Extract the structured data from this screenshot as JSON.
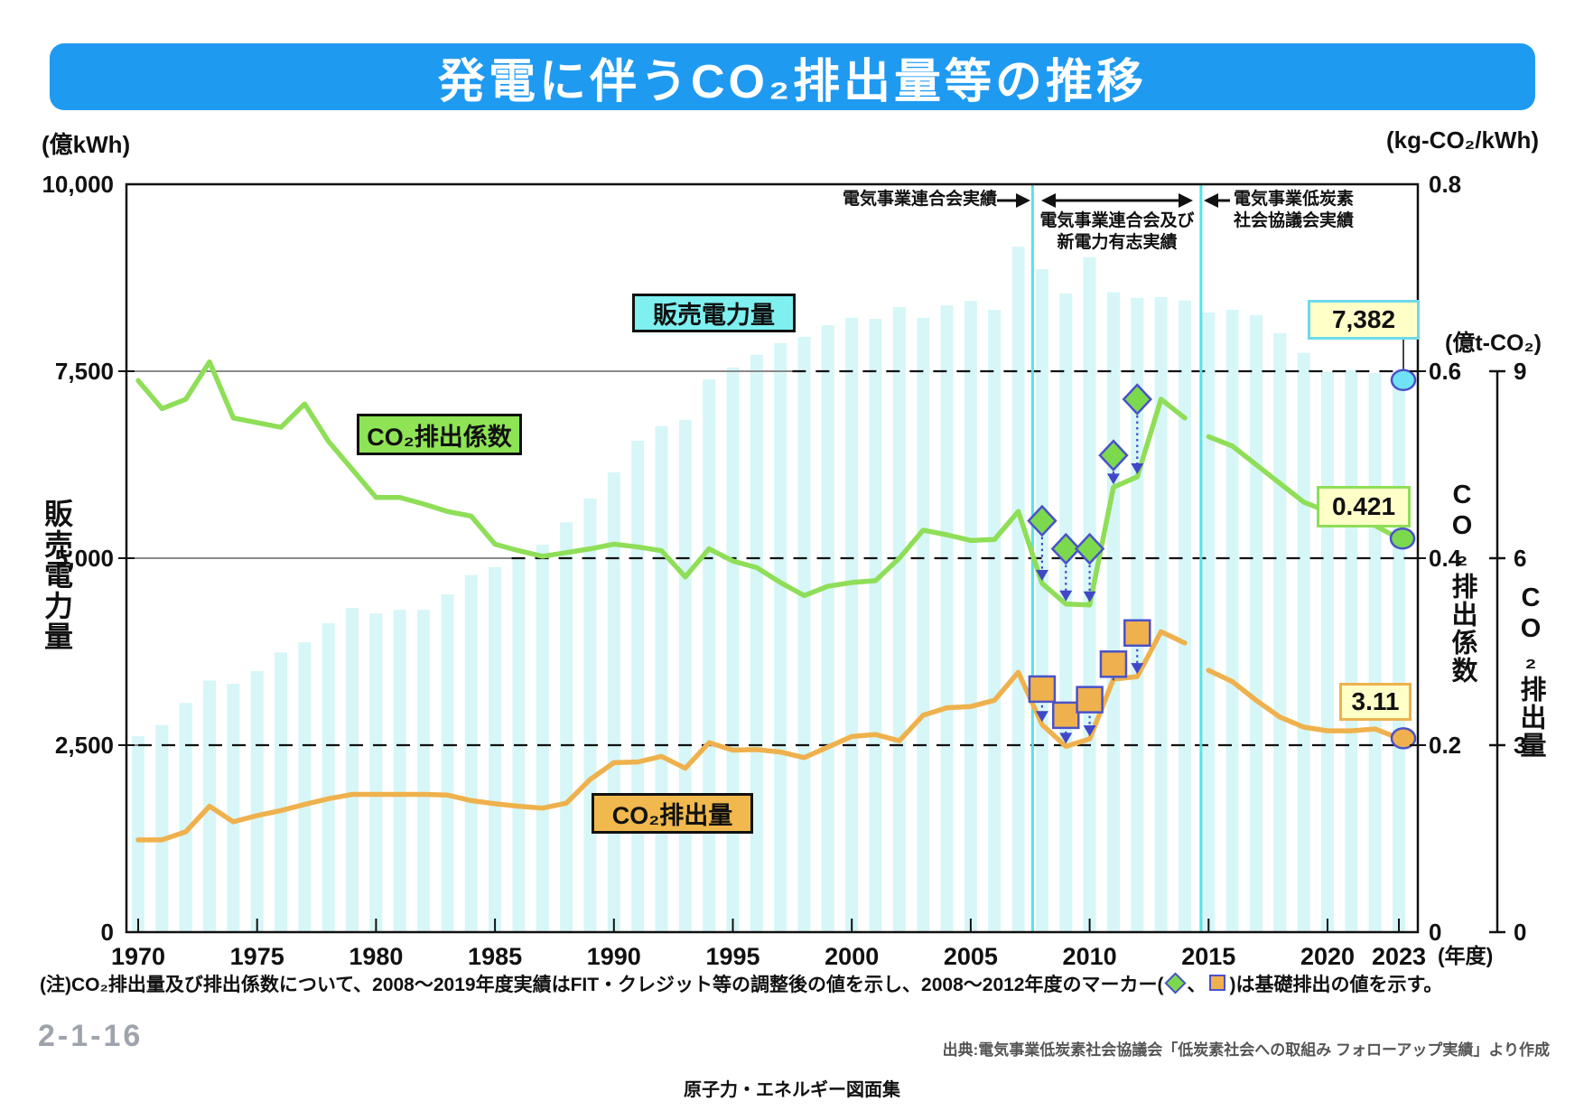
{
  "title": "発電に伴うCO₂排出量等の推移",
  "axes": {
    "left_unit": "(億kWh)",
    "left_title": "販売電力量",
    "left_ticks": [
      [
        10000,
        "10,000"
      ],
      [
        7500,
        "7,500"
      ],
      [
        5000,
        "5,000"
      ],
      [
        2500,
        "2,500"
      ],
      [
        0,
        "0"
      ]
    ],
    "right_unit": "(kg-CO₂/kWh)",
    "right_ticks": [
      [
        0.8,
        "0.8"
      ],
      [
        0.6,
        "0.6"
      ],
      [
        0.4,
        "0.4"
      ],
      [
        0.2,
        "0.2"
      ],
      [
        0,
        "0"
      ]
    ],
    "right2_unit": "(億t-CO₂)",
    "right2_title": "CO₂排出係数",
    "right3_title": "CO₂排出量",
    "right2_ticks": [
      [
        9,
        "9"
      ],
      [
        6,
        "6"
      ],
      [
        3,
        "3"
      ],
      [
        0,
        "0"
      ]
    ],
    "x_ticks": [
      [
        1970,
        "1970"
      ],
      [
        1975,
        "1975"
      ],
      [
        1980,
        "1980"
      ],
      [
        1985,
        "1985"
      ],
      [
        1990,
        "1990"
      ],
      [
        1995,
        "1995"
      ],
      [
        2000,
        "2000"
      ],
      [
        2005,
        "2005"
      ],
      [
        2010,
        "2010"
      ],
      [
        2015,
        "2015"
      ],
      [
        2020,
        "2020"
      ],
      [
        2023,
        "2023"
      ]
    ],
    "x_unit": "(年度)"
  },
  "legends": {
    "sales": "販売電力量",
    "factor": "CO₂排出係数",
    "amount": "CO₂排出量"
  },
  "callouts": {
    "sales": "7,382",
    "factor": "0.421",
    "amount": "3.11"
  },
  "annotations": {
    "fepc": "電気事業連合会実績",
    "fepc_new_1": "電気事業連合会及び",
    "fepc_new_2": "新電力有志実績",
    "elcs_1": "電気事業低炭素",
    "elcs_2": "社会協議会実績"
  },
  "note": {
    "pre": "(注)CO₂排出量及び排出係数について、2008〜2019年度実績はFIT・クレジット等の調整後の値を示し、2008〜2012年度のマーカー(",
    "mid": "、",
    "post": ")は基礎排出の値を示す。"
  },
  "footer": {
    "page_number": "2-1-16",
    "source": "出典:電気事業低炭素社会協議会「低炭素社会への取組み フォローアップ実績」より作成",
    "booklet": "原子力・エネルギー図面集"
  },
  "colors": {
    "banner": "#1f9af1",
    "bar": "#d7f6f7",
    "factor_line": "#8fde58",
    "amount_line": "#efb14d",
    "diamond_fill": "#7cd94e",
    "square_fill": "#efb14d",
    "marker_stroke": "#4a52c8",
    "arrow": "#4048c8",
    "divider": "#54e4e6",
    "sales_dot": "#70e2f5",
    "grid_solid": "#8a8a8a",
    "grid_dash": "#111111",
    "axis": "#111111"
  },
  "chart_data": {
    "type": "bar+line composite",
    "x_years": [
      1970,
      1971,
      1972,
      1973,
      1974,
      1975,
      1976,
      1977,
      1978,
      1979,
      1980,
      1981,
      1982,
      1983,
      1984,
      1985,
      1986,
      1987,
      1988,
      1989,
      1990,
      1991,
      1992,
      1993,
      1994,
      1995,
      1996,
      1997,
      1998,
      1999,
      2000,
      2001,
      2002,
      2003,
      2004,
      2005,
      2006,
      2007,
      2008,
      2009,
      2010,
      2011,
      2012,
      2013,
      2014,
      2015,
      2016,
      2017,
      2018,
      2019,
      2020,
      2021,
      2022,
      2023
    ],
    "series": [
      {
        "name": "販売電力量",
        "type": "bar",
        "unit": "億kWh",
        "axis_range": [
          0,
          10000
        ],
        "values": [
          2620,
          2770,
          3065,
          3365,
          3320,
          3490,
          3740,
          3875,
          4130,
          4335,
          4260,
          4310,
          4310,
          4515,
          4775,
          4880,
          5000,
          5180,
          5480,
          5800,
          6150,
          6570,
          6765,
          6850,
          7390,
          7550,
          7720,
          7875,
          7960,
          8115,
          8215,
          8200,
          8360,
          8215,
          8380,
          8440,
          8320,
          9165,
          8865,
          8540,
          9025,
          8555,
          8480,
          8490,
          8445,
          8285,
          8320,
          8250,
          8010,
          7745,
          7490,
          7515,
          7475,
          7382
        ]
      },
      {
        "name": "CO₂排出係数",
        "type": "line",
        "unit": "kg-CO₂/kWh",
        "axis_range": [
          0,
          0.8
        ],
        "gap_after": 2014,
        "values": [
          0.59,
          0.56,
          0.57,
          0.61,
          0.55,
          0.545,
          0.54,
          0.565,
          0.525,
          0.495,
          0.465,
          0.465,
          0.458,
          0.45,
          0.445,
          0.415,
          0.408,
          0.402,
          0.406,
          0.41,
          0.415,
          0.412,
          0.408,
          0.38,
          0.41,
          0.397,
          0.39,
          0.374,
          0.36,
          0.37,
          0.374,
          0.376,
          0.4,
          0.43,
          0.425,
          0.419,
          0.42,
          0.45,
          0.373,
          0.351,
          0.35,
          0.476,
          0.487,
          0.57,
          0.55,
          0.53,
          0.52,
          0.5,
          0.48,
          0.46,
          0.45,
          0.44,
          0.435,
          0.421
        ]
      },
      {
        "name": "CO₂排出量",
        "type": "line",
        "unit": "億t-CO₂",
        "axis_range": [
          0,
          12
        ],
        "gap_after": 2014,
        "values": [
          1.48,
          1.48,
          1.61,
          2.02,
          1.77,
          1.87,
          1.95,
          2.05,
          2.14,
          2.21,
          2.21,
          2.21,
          2.21,
          2.2,
          2.11,
          2.06,
          2.02,
          1.99,
          2.07,
          2.45,
          2.72,
          2.73,
          2.82,
          2.63,
          3.04,
          2.92,
          2.93,
          2.89,
          2.8,
          2.97,
          3.14,
          3.17,
          3.07,
          3.48,
          3.6,
          3.62,
          3.72,
          4.17,
          3.33,
          2.98,
          3.1,
          4.06,
          4.1,
          4.82,
          4.64,
          4.2,
          4.02,
          3.72,
          3.45,
          3.29,
          3.23,
          3.23,
          3.26,
          3.11
        ]
      }
    ],
    "base_markers": {
      "years": [
        2008,
        2009,
        2010,
        2011,
        2012
      ],
      "factor_base": [
        0.44,
        0.41,
        0.41,
        0.51,
        0.57
      ],
      "emissions_base": [
        3.9,
        3.48,
        3.73,
        4.3,
        4.8
      ]
    },
    "final_labeled_values": {
      "sales_2023": 7382,
      "factor_2023": 0.421,
      "emissions_2023": 3.11
    },
    "period_divider_years": [
      2007.6,
      2014.68
    ],
    "ylim_left": [
      0,
      10000
    ],
    "ylim_right_factor": [
      0,
      0.8
    ],
    "right2_axis_alignment": "9億t-CO₂ = 0.6 kg-CO₂/kWh",
    "grid_levels_left": [
      7500,
      5000,
      2500
    ],
    "grid_solid_until_year": {
      "7500": 1997.5,
      "5000": 1985.7,
      "2500": 1970
    },
    "legend_position": "inside plot",
    "grid": "horizontal dashed"
  }
}
